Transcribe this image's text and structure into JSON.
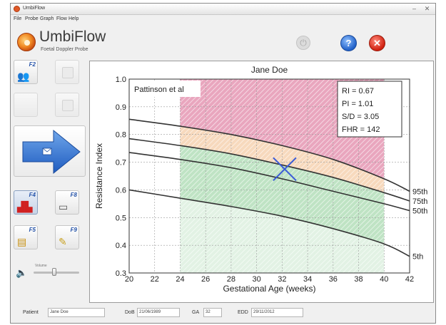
{
  "window": {
    "title": "UmbiFlow"
  },
  "menu": [
    "File",
    "Probe",
    "Graph",
    "Flow",
    "Help"
  ],
  "header": {
    "app_name": "UmbiFlow",
    "subtitle": "Foetal Doppler Probe"
  },
  "sidebar": {
    "buttons": [
      {
        "key": "F2",
        "icon": "patient-icon"
      },
      {
        "key": "",
        "icon": "record-icon",
        "disabled": true
      },
      {
        "key": "",
        "icon": "blank-icon",
        "disabled": true
      },
      {
        "key": "",
        "icon": "save-icon",
        "disabled": true
      },
      {
        "key": "F4",
        "icon": "waveform-icon"
      },
      {
        "key": "F8",
        "icon": "print-icon"
      },
      {
        "key": "F5",
        "icon": "open-file-icon"
      },
      {
        "key": "F9",
        "icon": "tools-icon"
      }
    ],
    "volume_label": "Volume"
  },
  "chart_data": {
    "type": "line",
    "title": "Jane Doe",
    "reference": "Pattinson et al",
    "xlabel": "Gestational Age (weeks)",
    "ylabel": "Resistance Index",
    "xlim": [
      20,
      42
    ],
    "ylim": [
      0.3,
      1.0
    ],
    "x_ticks": [
      20,
      22,
      24,
      26,
      28,
      30,
      32,
      34,
      36,
      38,
      40,
      42
    ],
    "y_ticks": [
      0.3,
      0.4,
      0.5,
      0.6,
      0.7,
      0.8,
      0.9,
      1.0
    ],
    "grid": true,
    "shaded_range_weeks": [
      24,
      40
    ],
    "series": [
      {
        "name": "95th",
        "x": [
          20,
          24,
          28,
          32,
          36,
          40,
          42
        ],
        "values": [
          0.855,
          0.83,
          0.8,
          0.76,
          0.71,
          0.64,
          0.595
        ]
      },
      {
        "name": "75th",
        "x": [
          20,
          24,
          28,
          32,
          36,
          40,
          42
        ],
        "values": [
          0.785,
          0.76,
          0.73,
          0.69,
          0.645,
          0.59,
          0.56
        ]
      },
      {
        "name": "50th",
        "x": [
          20,
          24,
          28,
          32,
          36,
          40,
          42
        ],
        "values": [
          0.735,
          0.71,
          0.68,
          0.64,
          0.595,
          0.55,
          0.525
        ]
      },
      {
        "name": "5th",
        "x": [
          20,
          24,
          28,
          32,
          36,
          40,
          42
        ],
        "values": [
          0.6,
          0.57,
          0.54,
          0.505,
          0.46,
          0.405,
          0.36
        ]
      }
    ],
    "measurement": {
      "x": 32.2,
      "y": 0.675
    },
    "readings": [
      "RI = 0.67",
      "PI = 1.01",
      "S/D = 3.05",
      "FHR = 142"
    ]
  },
  "status": {
    "patient_label": "Patient",
    "patient_value": "Jane Doe",
    "dob_label": "DoB",
    "dob_value": "21/06/1989",
    "ga_label": "GA",
    "ga_value": "32",
    "edd_label": "EDD",
    "edd_value": "29/11/2012"
  },
  "colors": {
    "above_95th": "#e9a6be",
    "between_75_95": "#f7d9bd",
    "normal": "#bfe3c4",
    "curve": "#333333",
    "marker": "#3a5bd8"
  }
}
